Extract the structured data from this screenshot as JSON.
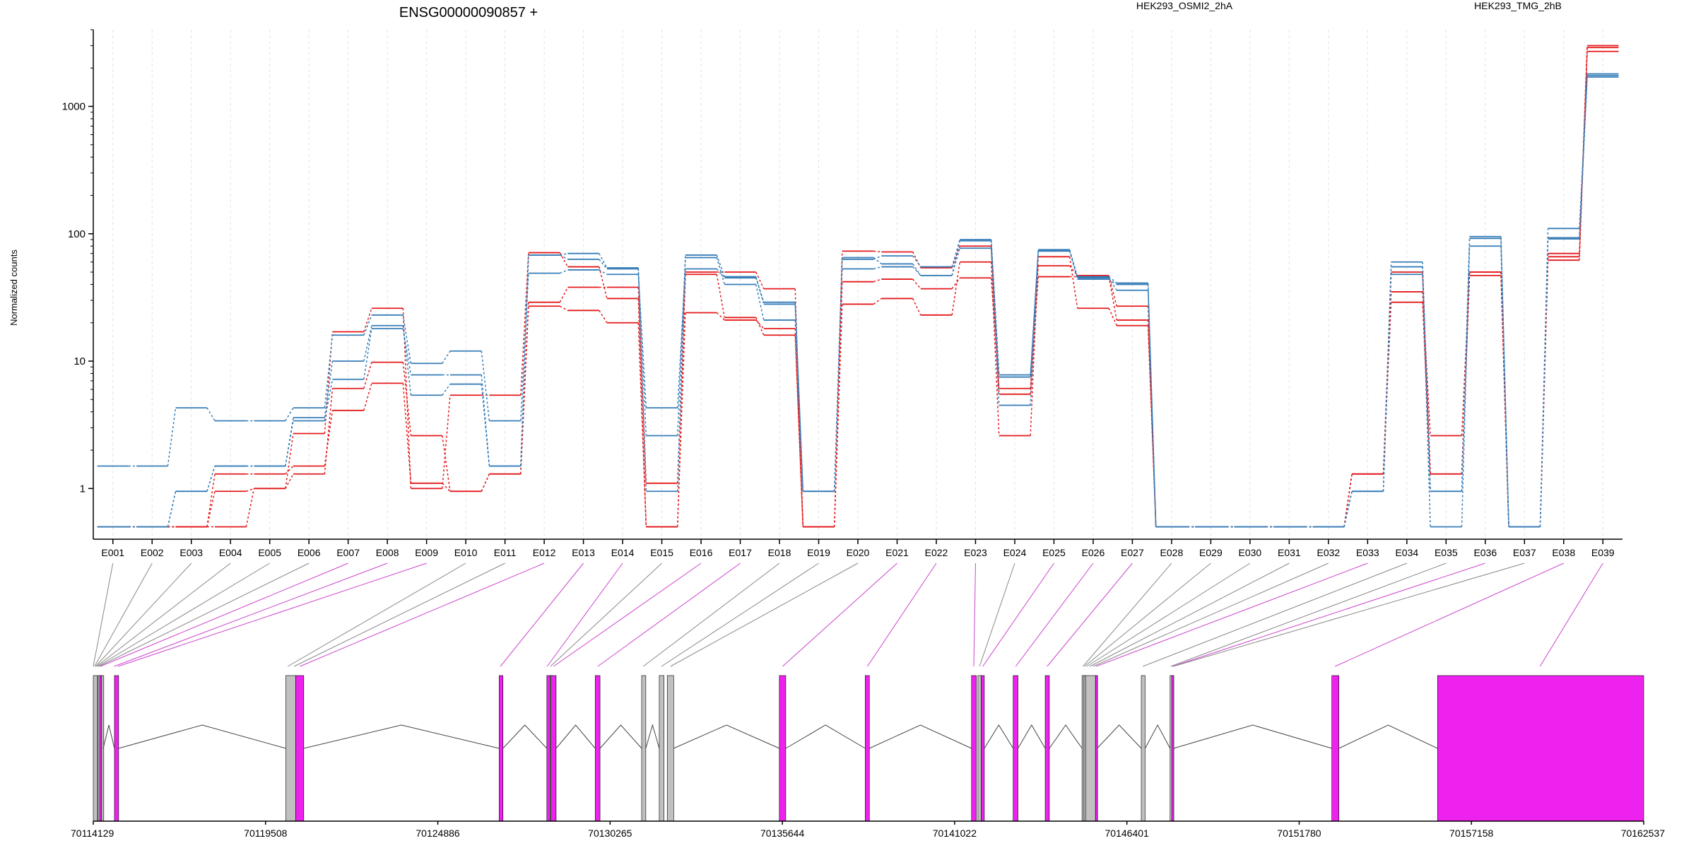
{
  "title": "ENSG00000090857 +",
  "colors": {
    "series_a": "#e41a1c",
    "series_b": "#377eb8",
    "exon_counted": "#ee22ee",
    "exon_uncounted": "#c0c0c0",
    "axis": "#000000",
    "connector_counted": "#cc44cc",
    "connector_uncounted": "#888888",
    "gridline": "#e6dff0"
  },
  "chart_data": {
    "type": "line",
    "title": "ENSG00000090857 +",
    "ylabel": "Normalized counts",
    "y_scale": "log",
    "y_ticks": [
      1,
      10,
      100,
      1000
    ],
    "y_tick_labels": [
      "1",
      "10",
      "100",
      "1000"
    ],
    "ylim": [
      0.4,
      4000
    ],
    "grid": "vertical dashed lines at each exonic bin",
    "legend_placement": "top",
    "legend": [
      {
        "label": "HEK293_OSMI2_2hA",
        "color": "#e41a1c"
      },
      {
        "label": "HEK293_TMG_2hB",
        "color": "#377eb8"
      }
    ],
    "categories": [
      "E001",
      "E002",
      "E003",
      "E004",
      "E005",
      "E006",
      "E007",
      "E008",
      "E009",
      "E010",
      "E011",
      "E012",
      "E013",
      "E014",
      "E015",
      "E016",
      "E017",
      "E018",
      "E019",
      "E020",
      "E021",
      "E022",
      "E023",
      "E024",
      "E025",
      "E026",
      "E027",
      "E028",
      "E029",
      "E030",
      "E031",
      "E032",
      "E033",
      "E034",
      "E035",
      "E036",
      "E037",
      "E038",
      "E039"
    ],
    "series": [
      {
        "group": "a",
        "values": [
          0.5,
          0.5,
          0.5,
          0.5,
          1.0,
          1.3,
          6.1,
          9.8,
          2.6,
          0.95,
          1.3,
          29,
          38,
          38,
          1.1,
          50,
          50,
          37,
          0.5,
          73,
          72,
          54,
          80,
          5.5,
          56,
          47,
          27,
          0.5,
          0.5,
          0.5,
          0.5,
          0.5,
          1.3,
          35,
          2.6,
          50,
          0.5,
          66,
          3000
        ]
      },
      {
        "group": "a",
        "values": [
          0.5,
          0.5,
          0.5,
          1.3,
          1.3,
          1.5,
          4.1,
          6.7,
          1.1,
          0.95,
          1.3,
          27,
          25,
          20,
          0.5,
          24,
          21,
          18,
          0.5,
          42,
          44,
          37,
          45,
          6.1,
          46,
          46,
          21,
          0.5,
          0.5,
          0.5,
          0.5,
          0.5,
          1.3,
          29,
          1.3,
          47,
          0.5,
          70,
          2900
        ]
      },
      {
        "group": "a",
        "values": [
          0.5,
          0.5,
          0.5,
          0.95,
          1.0,
          2.7,
          17,
          26,
          1.0,
          5.4,
          5.4,
          71,
          55,
          31,
          0.5,
          48,
          22,
          16,
          0.5,
          28,
          31,
          23,
          60,
          2.6,
          66,
          26,
          19,
          0.5,
          0.5,
          0.5,
          0.5,
          0.5,
          1.3,
          50,
          1.3,
          50,
          0.5,
          62,
          2700
        ]
      },
      {
        "group": "b",
        "values": [
          1.5,
          1.5,
          4.3,
          3.4,
          3.4,
          4.3,
          16,
          23,
          9.6,
          12,
          3.4,
          49,
          52,
          48,
          4.3,
          53,
          45,
          29,
          0.95,
          63,
          67,
          55,
          90,
          7.8,
          75,
          46,
          41,
          0.5,
          0.5,
          0.5,
          0.5,
          0.5,
          0.95,
          60,
          0.95,
          95,
          0.5,
          110,
          1800
        ]
      },
      {
        "group": "b",
        "values": [
          0.5,
          0.5,
          0.95,
          1.5,
          1.5,
          3.6,
          10,
          19,
          5.4,
          6.6,
          1.5,
          68,
          70,
          54,
          0.95,
          68,
          46,
          28,
          0.95,
          53,
          55,
          47,
          77,
          4.5,
          73,
          45,
          36,
          0.5,
          0.5,
          0.5,
          0.5,
          0.5,
          0.95,
          55,
          0.95,
          92,
          0.5,
          93,
          1750
        ]
      },
      {
        "group": "b",
        "values": [
          0.5,
          0.5,
          0.95,
          1.5,
          1.5,
          3.4,
          7.2,
          18,
          7.8,
          7.8,
          1.5,
          68,
          63,
          53,
          2.6,
          65,
          40,
          21,
          0.95,
          65,
          58,
          47,
          88,
          7.5,
          74,
          44,
          40,
          0.5,
          0.5,
          0.5,
          0.5,
          0.5,
          0.95,
          48,
          0.5,
          80,
          0.5,
          91,
          1700
        ]
      }
    ],
    "genomic_axis": {
      "tick_labels": [
        "70114129",
        "70119508",
        "70124886",
        "70130265",
        "70135644",
        "70141022",
        "70146401",
        "70151780",
        "70157158",
        "70162537"
      ],
      "range": [
        70114129,
        70162537
      ]
    },
    "exon_features": [
      {
        "start": 70114129,
        "end": 70114260,
        "counted": false
      },
      {
        "start": 70114280,
        "end": 70114330,
        "counted": false
      },
      {
        "start": 70114330,
        "end": 70114380,
        "counted": true
      },
      {
        "start": 70114390,
        "end": 70114440,
        "counted": false
      },
      {
        "start": 70114790,
        "end": 70114920,
        "counted": true
      },
      {
        "start": 70120140,
        "end": 70120450,
        "counted": false
      },
      {
        "start": 70120450,
        "end": 70120700,
        "counted": true
      },
      {
        "start": 70126800,
        "end": 70126920,
        "counted": true
      },
      {
        "start": 70128290,
        "end": 70128390,
        "counted": true
      },
      {
        "start": 70128390,
        "end": 70128420,
        "counted": false
      },
      {
        "start": 70128420,
        "end": 70128580,
        "counted": true
      },
      {
        "start": 70129800,
        "end": 70129950,
        "counted": true
      },
      {
        "start": 70131250,
        "end": 70131380,
        "counted": false
      },
      {
        "start": 70131800,
        "end": 70131950,
        "counted": false
      },
      {
        "start": 70132050,
        "end": 70132250,
        "counted": false
      },
      {
        "start": 70135550,
        "end": 70135750,
        "counted": true
      },
      {
        "start": 70138230,
        "end": 70138360,
        "counted": true
      },
      {
        "start": 70141550,
        "end": 70141700,
        "counted": true
      },
      {
        "start": 70141750,
        "end": 70141850,
        "counted": false
      },
      {
        "start": 70141850,
        "end": 70141950,
        "counted": true
      },
      {
        "start": 70142850,
        "end": 70143000,
        "counted": true
      },
      {
        "start": 70143850,
        "end": 70143980,
        "counted": true
      },
      {
        "start": 70145000,
        "end": 70145060,
        "counted": false
      },
      {
        "start": 70145060,
        "end": 70145110,
        "counted": false
      },
      {
        "start": 70145110,
        "end": 70145420,
        "counted": false
      },
      {
        "start": 70145420,
        "end": 70145470,
        "counted": true
      },
      {
        "start": 70146850,
        "end": 70146970,
        "counted": false
      },
      {
        "start": 70147750,
        "end": 70147800,
        "counted": false
      },
      {
        "start": 70147800,
        "end": 70147860,
        "counted": true
      },
      {
        "start": 70152800,
        "end": 70153020,
        "counted": true
      },
      {
        "start": 70156100,
        "end": 70162537,
        "counted": true
      }
    ],
    "bin_connectors": [
      {
        "bin": "E001",
        "pos": 70114129,
        "counted": false
      },
      {
        "bin": "E002",
        "pos": 70114170,
        "counted": false
      },
      {
        "bin": "E003",
        "pos": 70114200,
        "counted": false
      },
      {
        "bin": "E004",
        "pos": 70114230,
        "counted": false
      },
      {
        "bin": "E005",
        "pos": 70114260,
        "counted": false
      },
      {
        "bin": "E006",
        "pos": 70114300,
        "counted": false
      },
      {
        "bin": "E007",
        "pos": 70114350,
        "counted": true
      },
      {
        "bin": "E008",
        "pos": 70114780,
        "counted": true
      },
      {
        "bin": "E009",
        "pos": 70114900,
        "counted": true
      },
      {
        "bin": "E010",
        "pos": 70120200,
        "counted": false
      },
      {
        "bin": "E011",
        "pos": 70120400,
        "counted": false
      },
      {
        "bin": "E012",
        "pos": 70120580,
        "counted": true
      },
      {
        "bin": "E013",
        "pos": 70126840,
        "counted": true
      },
      {
        "bin": "E014",
        "pos": 70128300,
        "counted": true
      },
      {
        "bin": "E015",
        "pos": 70128400,
        "counted": false
      },
      {
        "bin": "E016",
        "pos": 70128500,
        "counted": true
      },
      {
        "bin": "E017",
        "pos": 70129880,
        "counted": true
      },
      {
        "bin": "E018",
        "pos": 70131300,
        "counted": false
      },
      {
        "bin": "E019",
        "pos": 70131870,
        "counted": false
      },
      {
        "bin": "E020",
        "pos": 70132150,
        "counted": false
      },
      {
        "bin": "E021",
        "pos": 70135650,
        "counted": true
      },
      {
        "bin": "E022",
        "pos": 70138300,
        "counted": true
      },
      {
        "bin": "E023",
        "pos": 70141620,
        "counted": true
      },
      {
        "bin": "E024",
        "pos": 70141800,
        "counted": false
      },
      {
        "bin": "E025",
        "pos": 70141900,
        "counted": true
      },
      {
        "bin": "E026",
        "pos": 70142930,
        "counted": true
      },
      {
        "bin": "E027",
        "pos": 70143910,
        "counted": true
      },
      {
        "bin": "E028",
        "pos": 70145030,
        "counted": false
      },
      {
        "bin": "E029",
        "pos": 70145080,
        "counted": false
      },
      {
        "bin": "E030",
        "pos": 70145150,
        "counted": false
      },
      {
        "bin": "E031",
        "pos": 70145250,
        "counted": false
      },
      {
        "bin": "E032",
        "pos": 70145350,
        "counted": false
      },
      {
        "bin": "E033",
        "pos": 70145440,
        "counted": true
      },
      {
        "bin": "E034",
        "pos": 70146900,
        "counted": false
      },
      {
        "bin": "E035",
        "pos": 70147770,
        "counted": false
      },
      {
        "bin": "E036",
        "pos": 70147830,
        "counted": true
      },
      {
        "bin": "E037",
        "pos": 70147850,
        "counted": false
      },
      {
        "bin": "E038",
        "pos": 70152900,
        "counted": true
      },
      {
        "bin": "E039",
        "pos": 70159300,
        "counted": true
      }
    ]
  }
}
